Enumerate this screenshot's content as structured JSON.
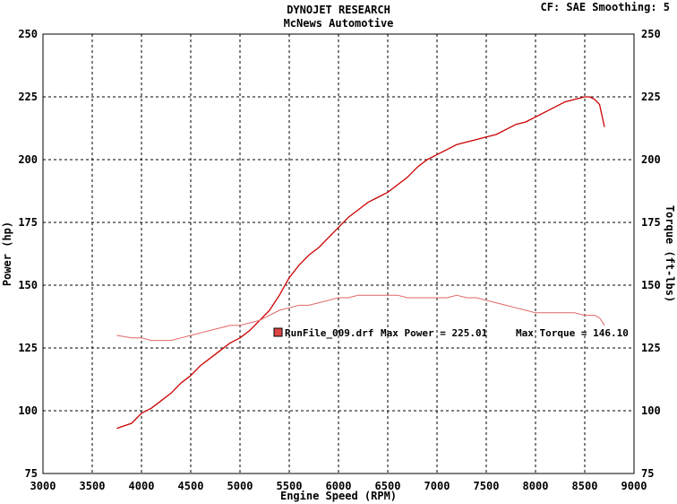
{
  "header": {
    "title": "DYNOJET RESEARCH",
    "subtitle": "McNews Automotive",
    "settings": "CF: SAE  Smoothing: 5"
  },
  "chart_data": {
    "type": "line",
    "xlabel": "Engine Speed (RPM)",
    "ylabel": "Power (hp)",
    "y2label": "Torque (ft-lbs)",
    "xlim": [
      3000,
      9000
    ],
    "ylim": [
      75,
      250
    ],
    "y2lim": [
      75,
      250
    ],
    "xticks": [
      "3000",
      "3500",
      "4000",
      "4500",
      "5000",
      "5500",
      "6000",
      "6500",
      "7000",
      "7500",
      "8000",
      "8500",
      "9000"
    ],
    "yticks": [
      "75",
      "100",
      "125",
      "150",
      "175",
      "200",
      "225",
      "250"
    ],
    "y2ticks": [
      "75",
      "100",
      "125",
      "150",
      "175",
      "200",
      "225",
      "250"
    ],
    "grid": true,
    "series": [
      {
        "name": "Power (hp)",
        "color": "#cc0000",
        "x": [
          3750,
          3900,
          4000,
          4100,
          4200,
          4300,
          4400,
          4500,
          4600,
          4700,
          4800,
          4900,
          5000,
          5100,
          5200,
          5300,
          5400,
          5500,
          5600,
          5700,
          5800,
          5900,
          6000,
          6100,
          6200,
          6300,
          6400,
          6500,
          6600,
          6700,
          6800,
          6900,
          7000,
          7100,
          7200,
          7300,
          7400,
          7500,
          7600,
          7700,
          7800,
          7900,
          8000,
          8100,
          8200,
          8300,
          8400,
          8500,
          8550,
          8600,
          8650,
          8700
        ],
        "y": [
          93,
          95,
          99,
          101,
          104,
          107,
          111,
          114,
          118,
          121,
          124,
          127,
          129,
          132,
          136,
          140,
          146,
          153,
          158,
          162,
          165,
          169,
          173,
          177,
          180,
          183,
          185,
          187,
          190,
          193,
          197,
          200,
          202,
          204,
          206,
          207,
          208,
          209,
          210,
          212,
          214,
          215,
          217,
          219,
          221,
          223,
          224,
          225,
          225,
          224,
          222,
          213
        ]
      },
      {
        "name": "Torque (ft-lbs)",
        "color": "#e06666",
        "x": [
          3750,
          3900,
          4000,
          4100,
          4200,
          4300,
          4400,
          4500,
          4600,
          4700,
          4800,
          4900,
          5000,
          5100,
          5200,
          5300,
          5400,
          5500,
          5600,
          5700,
          5800,
          5900,
          6000,
          6100,
          6200,
          6300,
          6400,
          6500,
          6600,
          6700,
          6800,
          6900,
          7000,
          7100,
          7200,
          7300,
          7400,
          7500,
          7600,
          7700,
          7800,
          7900,
          8000,
          8100,
          8200,
          8300,
          8400,
          8500,
          8600,
          8650,
          8700
        ],
        "y": [
          130,
          129,
          129,
          128,
          128,
          128,
          129,
          130,
          131,
          132,
          133,
          134,
          134,
          135,
          136,
          138,
          140,
          141,
          142,
          142,
          143,
          144,
          145,
          145,
          146,
          146,
          146,
          146,
          146,
          145,
          145,
          145,
          145,
          145,
          146,
          145,
          145,
          144,
          143,
          142,
          141,
          140,
          139,
          139,
          139,
          139,
          139,
          138,
          138,
          137,
          134
        ]
      }
    ],
    "annotation": {
      "file": "RunFile_009.drf",
      "max_power": "Max Power = 225.01",
      "max_torque": "Max Torque = 146.10",
      "marker_color": "#dd4444"
    }
  }
}
